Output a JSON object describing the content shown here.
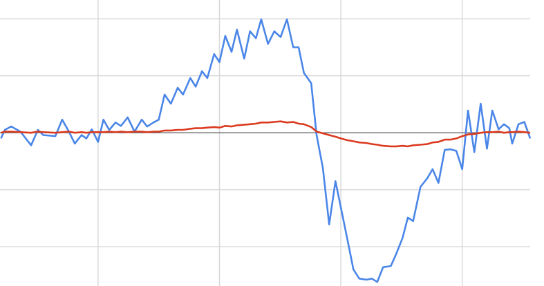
{
  "chart_data": {
    "type": "line",
    "x": [
      0,
      0.8,
      2.1,
      4.0,
      6.2,
      7.6,
      8.7,
      11.2,
      12.6,
      14.0,
      15.2,
      16.6,
      17.6,
      18.7,
      20,
      21.1,
      22.3,
      23.6,
      24.7,
      26.1,
      27.5,
      29.0,
      30.1,
      31.4,
      32.5,
      33.7,
      35.0,
      36.4,
      37.5,
      39.0,
      40.1,
      41.4,
      42.5,
      43.9,
      45,
      46.2,
      47.5,
      48.6,
      50.1,
      51.3,
      52.5,
      53.6,
      55.0,
      56.3,
      57.6,
      58.9,
      60.2,
      61.3,
      62.4,
      63.9,
      65.0,
      66.3,
      67.6,
      68.9,
      70,
      71.3,
      72.6,
      73.8,
      75.3,
      76.4,
      77.5,
      78.7,
      80.3,
      81.4,
      82.7,
      83.8,
      84.9,
      86.4,
      87.8,
      88.9,
      90.1,
      91.4,
      92.6,
      93.8,
      95,
      96.2,
      97.5,
      98.8,
      100.1,
      101.2,
      102.5,
      103.6,
      104.7,
      105.3,
      106.6,
      107.8,
      109
    ],
    "series": [
      {
        "color": "#4a86e8",
        "values": [
          -0.1,
          0.05,
          0.11,
          0.02,
          -0.22,
          0.05,
          -0.04,
          -0.06,
          0.23,
          0.02,
          -0.19,
          -0.04,
          -0.1,
          0.06,
          -0.16,
          0.23,
          0.05,
          0.18,
          0.12,
          0.27,
          0.02,
          0.23,
          0.11,
          0.18,
          0.23,
          0.67,
          0.51,
          0.79,
          0.67,
          0.96,
          0.81,
          1.08,
          0.96,
          1.38,
          1.24,
          1.7,
          1.42,
          1.81,
          1.3,
          1.78,
          1.66,
          1.99,
          1.56,
          1.78,
          1.68,
          1.99,
          1.5,
          1.5,
          1.05,
          0.87,
          -0.04,
          -0.62,
          -1.61,
          -0.85,
          -1.31,
          -1.85,
          -2.4,
          -2.56,
          -2.58,
          -2.56,
          -2.62,
          -2.36,
          -2.34,
          -2.13,
          -1.85,
          -1.49,
          -1.55,
          -0.95,
          -0.8,
          -0.64,
          -0.88,
          -0.3,
          -0.29,
          -0.32,
          -0.64,
          0.39,
          -0.34,
          0.51,
          -0.28,
          0.39,
          0.06,
          0.15,
          0.08,
          -0.19,
          0.15,
          0.19,
          -0.1
        ]
      },
      {
        "color": "#db3a1f",
        "values": [
          0.0,
          0.02,
          0.02,
          0.01,
          0.0,
          0.02,
          0.01,
          0.0,
          0.01,
          0.02,
          0.0,
          0.01,
          0.0,
          0.01,
          0.01,
          0.01,
          0.02,
          0.01,
          0.02,
          0.01,
          0.02,
          0.02,
          0.01,
          0.02,
          0.02,
          0.04,
          0.04,
          0.05,
          0.05,
          0.07,
          0.08,
          0.08,
          0.09,
          0.1,
          0.09,
          0.12,
          0.11,
          0.13,
          0.14,
          0.15,
          0.16,
          0.18,
          0.18,
          0.19,
          0.2,
          0.18,
          0.19,
          0.16,
          0.15,
          0.1,
          0.02,
          -0.01,
          -0.04,
          -0.07,
          -0.1,
          -0.13,
          -0.15,
          -0.17,
          -0.18,
          -0.2,
          -0.21,
          -0.23,
          -0.24,
          -0.24,
          -0.23,
          -0.24,
          -0.22,
          -0.21,
          -0.2,
          -0.17,
          -0.16,
          -0.12,
          -0.12,
          -0.1,
          -0.06,
          -0.03,
          -0.02,
          0.0,
          0.01,
          0.01,
          0.02,
          0.0,
          0.01,
          0.01,
          0.02,
          0.01,
          0.0
        ]
      }
    ],
    "xlim": [
      -0.2,
      109
    ],
    "xticks": [
      20,
      45,
      70,
      95
    ],
    "ylim": [
      -2.69,
      2.33
    ],
    "yticks": [
      -2,
      -1,
      0,
      1,
      2
    ],
    "grid": true
  }
}
